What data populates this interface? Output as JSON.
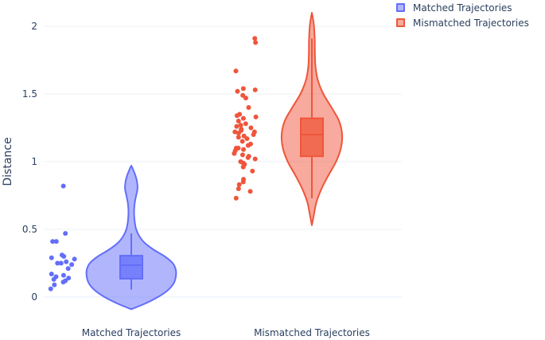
{
  "chart_data": {
    "type": "violin",
    "ylabel": "Distance",
    "ylim": [
      -0.08,
      2.1
    ],
    "yticks": [
      0,
      0.5,
      1,
      1.5,
      2
    ],
    "ytick_labels": [
      "0",
      "0.5",
      "1",
      "1.5",
      "2"
    ],
    "categories": [
      "Matched Trajectories",
      "Mismatched Trajectories"
    ],
    "legend_position": "top-right",
    "grid": true,
    "series": [
      {
        "name": "Matched Trajectories",
        "color": "#636efa",
        "fill": "#636efa",
        "box": {
          "q1": 0.135,
          "median": 0.235,
          "q3": 0.305,
          "lower_whisker": 0.055,
          "upper_whisker": 0.47
        },
        "violin_range": [
          -0.09,
          0.97
        ],
        "density": [
          [
            -0.09,
            0.0
          ],
          [
            -0.05,
            0.3
          ],
          [
            0.0,
            0.6
          ],
          [
            0.05,
            0.82
          ],
          [
            0.1,
            0.95
          ],
          [
            0.15,
            1.0
          ],
          [
            0.2,
            1.0
          ],
          [
            0.25,
            0.93
          ],
          [
            0.3,
            0.75
          ],
          [
            0.35,
            0.5
          ],
          [
            0.4,
            0.3
          ],
          [
            0.45,
            0.18
          ],
          [
            0.5,
            0.11
          ],
          [
            0.55,
            0.08
          ],
          [
            0.6,
            0.065
          ],
          [
            0.65,
            0.065
          ],
          [
            0.7,
            0.08
          ],
          [
            0.75,
            0.11
          ],
          [
            0.8,
            0.14
          ],
          [
            0.85,
            0.13
          ],
          [
            0.9,
            0.09
          ],
          [
            0.95,
            0.03
          ],
          [
            0.97,
            0.0
          ]
        ],
        "points": [
          0.82,
          0.47,
          0.41,
          0.41,
          0.31,
          0.3,
          0.29,
          0.28,
          0.26,
          0.25,
          0.25,
          0.24,
          0.21,
          0.17,
          0.16,
          0.15,
          0.14,
          0.13,
          0.12,
          0.11,
          0.09,
          0.06
        ]
      },
      {
        "name": "Mismatched Trajectories",
        "color": "#ef553b",
        "fill": "#ef553b",
        "box": {
          "q1": 1.04,
          "median": 1.2,
          "q3": 1.32,
          "lower_whisker": 0.73,
          "upper_whisker": 1.91
        },
        "violin_range": [
          0.53,
          2.1
        ],
        "density": [
          [
            0.53,
            0.0
          ],
          [
            0.6,
            0.06
          ],
          [
            0.7,
            0.15
          ],
          [
            0.8,
            0.32
          ],
          [
            0.9,
            0.55
          ],
          [
            1.0,
            0.8
          ],
          [
            1.1,
            0.96
          ],
          [
            1.2,
            1.0
          ],
          [
            1.3,
            0.9
          ],
          [
            1.4,
            0.65
          ],
          [
            1.5,
            0.38
          ],
          [
            1.6,
            0.2
          ],
          [
            1.7,
            0.12
          ],
          [
            1.8,
            0.1
          ],
          [
            1.9,
            0.095
          ],
          [
            2.0,
            0.07
          ],
          [
            2.05,
            0.04
          ],
          [
            2.1,
            0.0
          ]
        ],
        "points": [
          1.91,
          1.88,
          1.67,
          1.54,
          1.53,
          1.52,
          1.49,
          1.47,
          1.4,
          1.35,
          1.34,
          1.33,
          1.32,
          1.3,
          1.28,
          1.27,
          1.26,
          1.25,
          1.24,
          1.23,
          1.22,
          1.22,
          1.21,
          1.2,
          1.19,
          1.18,
          1.17,
          1.15,
          1.13,
          1.12,
          1.1,
          1.1,
          1.09,
          1.08,
          1.06,
          1.05,
          1.04,
          1.03,
          1.02,
          1.0,
          0.99,
          0.98,
          0.96,
          0.93,
          0.87,
          0.85,
          0.83,
          0.8,
          0.78,
          0.73
        ]
      }
    ]
  }
}
